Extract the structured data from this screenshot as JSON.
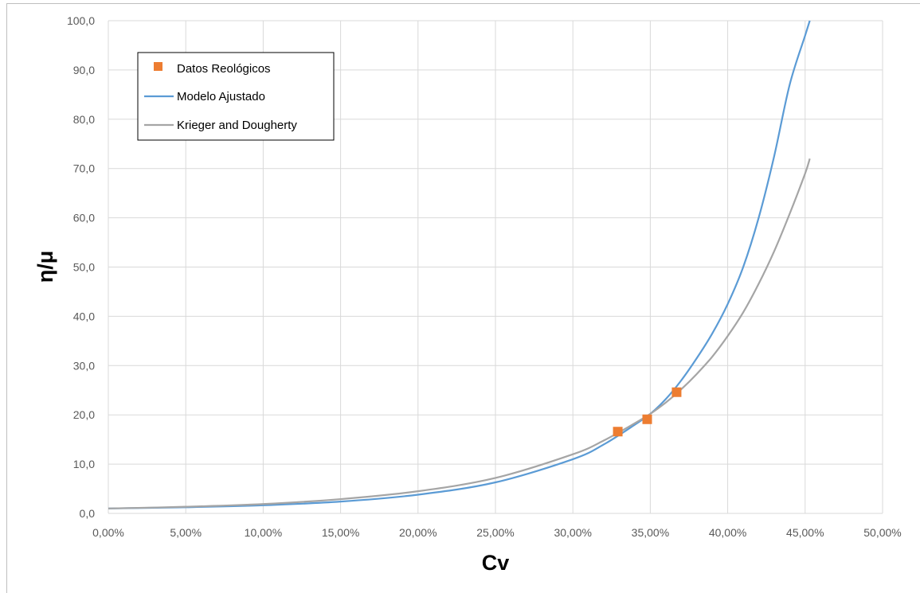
{
  "chart_data": {
    "type": "scatter",
    "xlabel": "Cv",
    "ylabel": "η/μ",
    "xlim": [
      0,
      0.5
    ],
    "ylim": [
      0,
      100
    ],
    "x_ticks": [
      "0,00%",
      "5,00%",
      "10,00%",
      "15,00%",
      "20,00%",
      "25,00%",
      "30,00%",
      "35,00%",
      "40,00%",
      "45,00%",
      "50,00%"
    ],
    "y_ticks": [
      "0,0",
      "10,0",
      "20,0",
      "30,0",
      "40,0",
      "50,0",
      "60,0",
      "70,0",
      "80,0",
      "90,0",
      "100,0"
    ],
    "grid": true,
    "legend_position": "top-left",
    "series": [
      {
        "name": "Datos Reológicos",
        "kind": "markers",
        "marker": "square",
        "color": "#ED7D31",
        "x": [
          0.329,
          0.348,
          0.367
        ],
        "y": [
          16.6,
          19.1,
          24.6
        ]
      },
      {
        "name": "Modelo Ajustado",
        "kind": "line",
        "color": "#5B9BD5",
        "x": [
          0.0,
          0.05,
          0.1,
          0.15,
          0.2,
          0.25,
          0.3,
          0.32,
          0.34,
          0.35,
          0.36,
          0.37,
          0.38,
          0.39,
          0.4,
          0.41,
          0.42,
          0.43,
          0.44,
          0.45,
          0.453
        ],
        "y": [
          1.0,
          1.25,
          1.65,
          2.4,
          3.8,
          6.3,
          11.0,
          14.0,
          18.0,
          20.2,
          23.2,
          27.0,
          31.5,
          36.5,
          42.5,
          50.0,
          60.0,
          72.5,
          87.0,
          97.0,
          100.0
        ]
      },
      {
        "name": "Krieger and Dougherty",
        "kind": "line",
        "color": "#A5A5A5",
        "x": [
          0.0,
          0.05,
          0.1,
          0.15,
          0.2,
          0.25,
          0.3,
          0.32,
          0.34,
          0.35,
          0.36,
          0.37,
          0.38,
          0.39,
          0.4,
          0.41,
          0.42,
          0.43,
          0.44,
          0.45,
          0.453
        ],
        "y": [
          1.0,
          1.35,
          1.9,
          2.9,
          4.5,
          7.2,
          12.0,
          14.8,
          18.3,
          20.2,
          22.5,
          25.2,
          28.3,
          31.8,
          36.0,
          40.8,
          46.6,
          53.2,
          60.8,
          69.0,
          72.0
        ]
      }
    ]
  }
}
